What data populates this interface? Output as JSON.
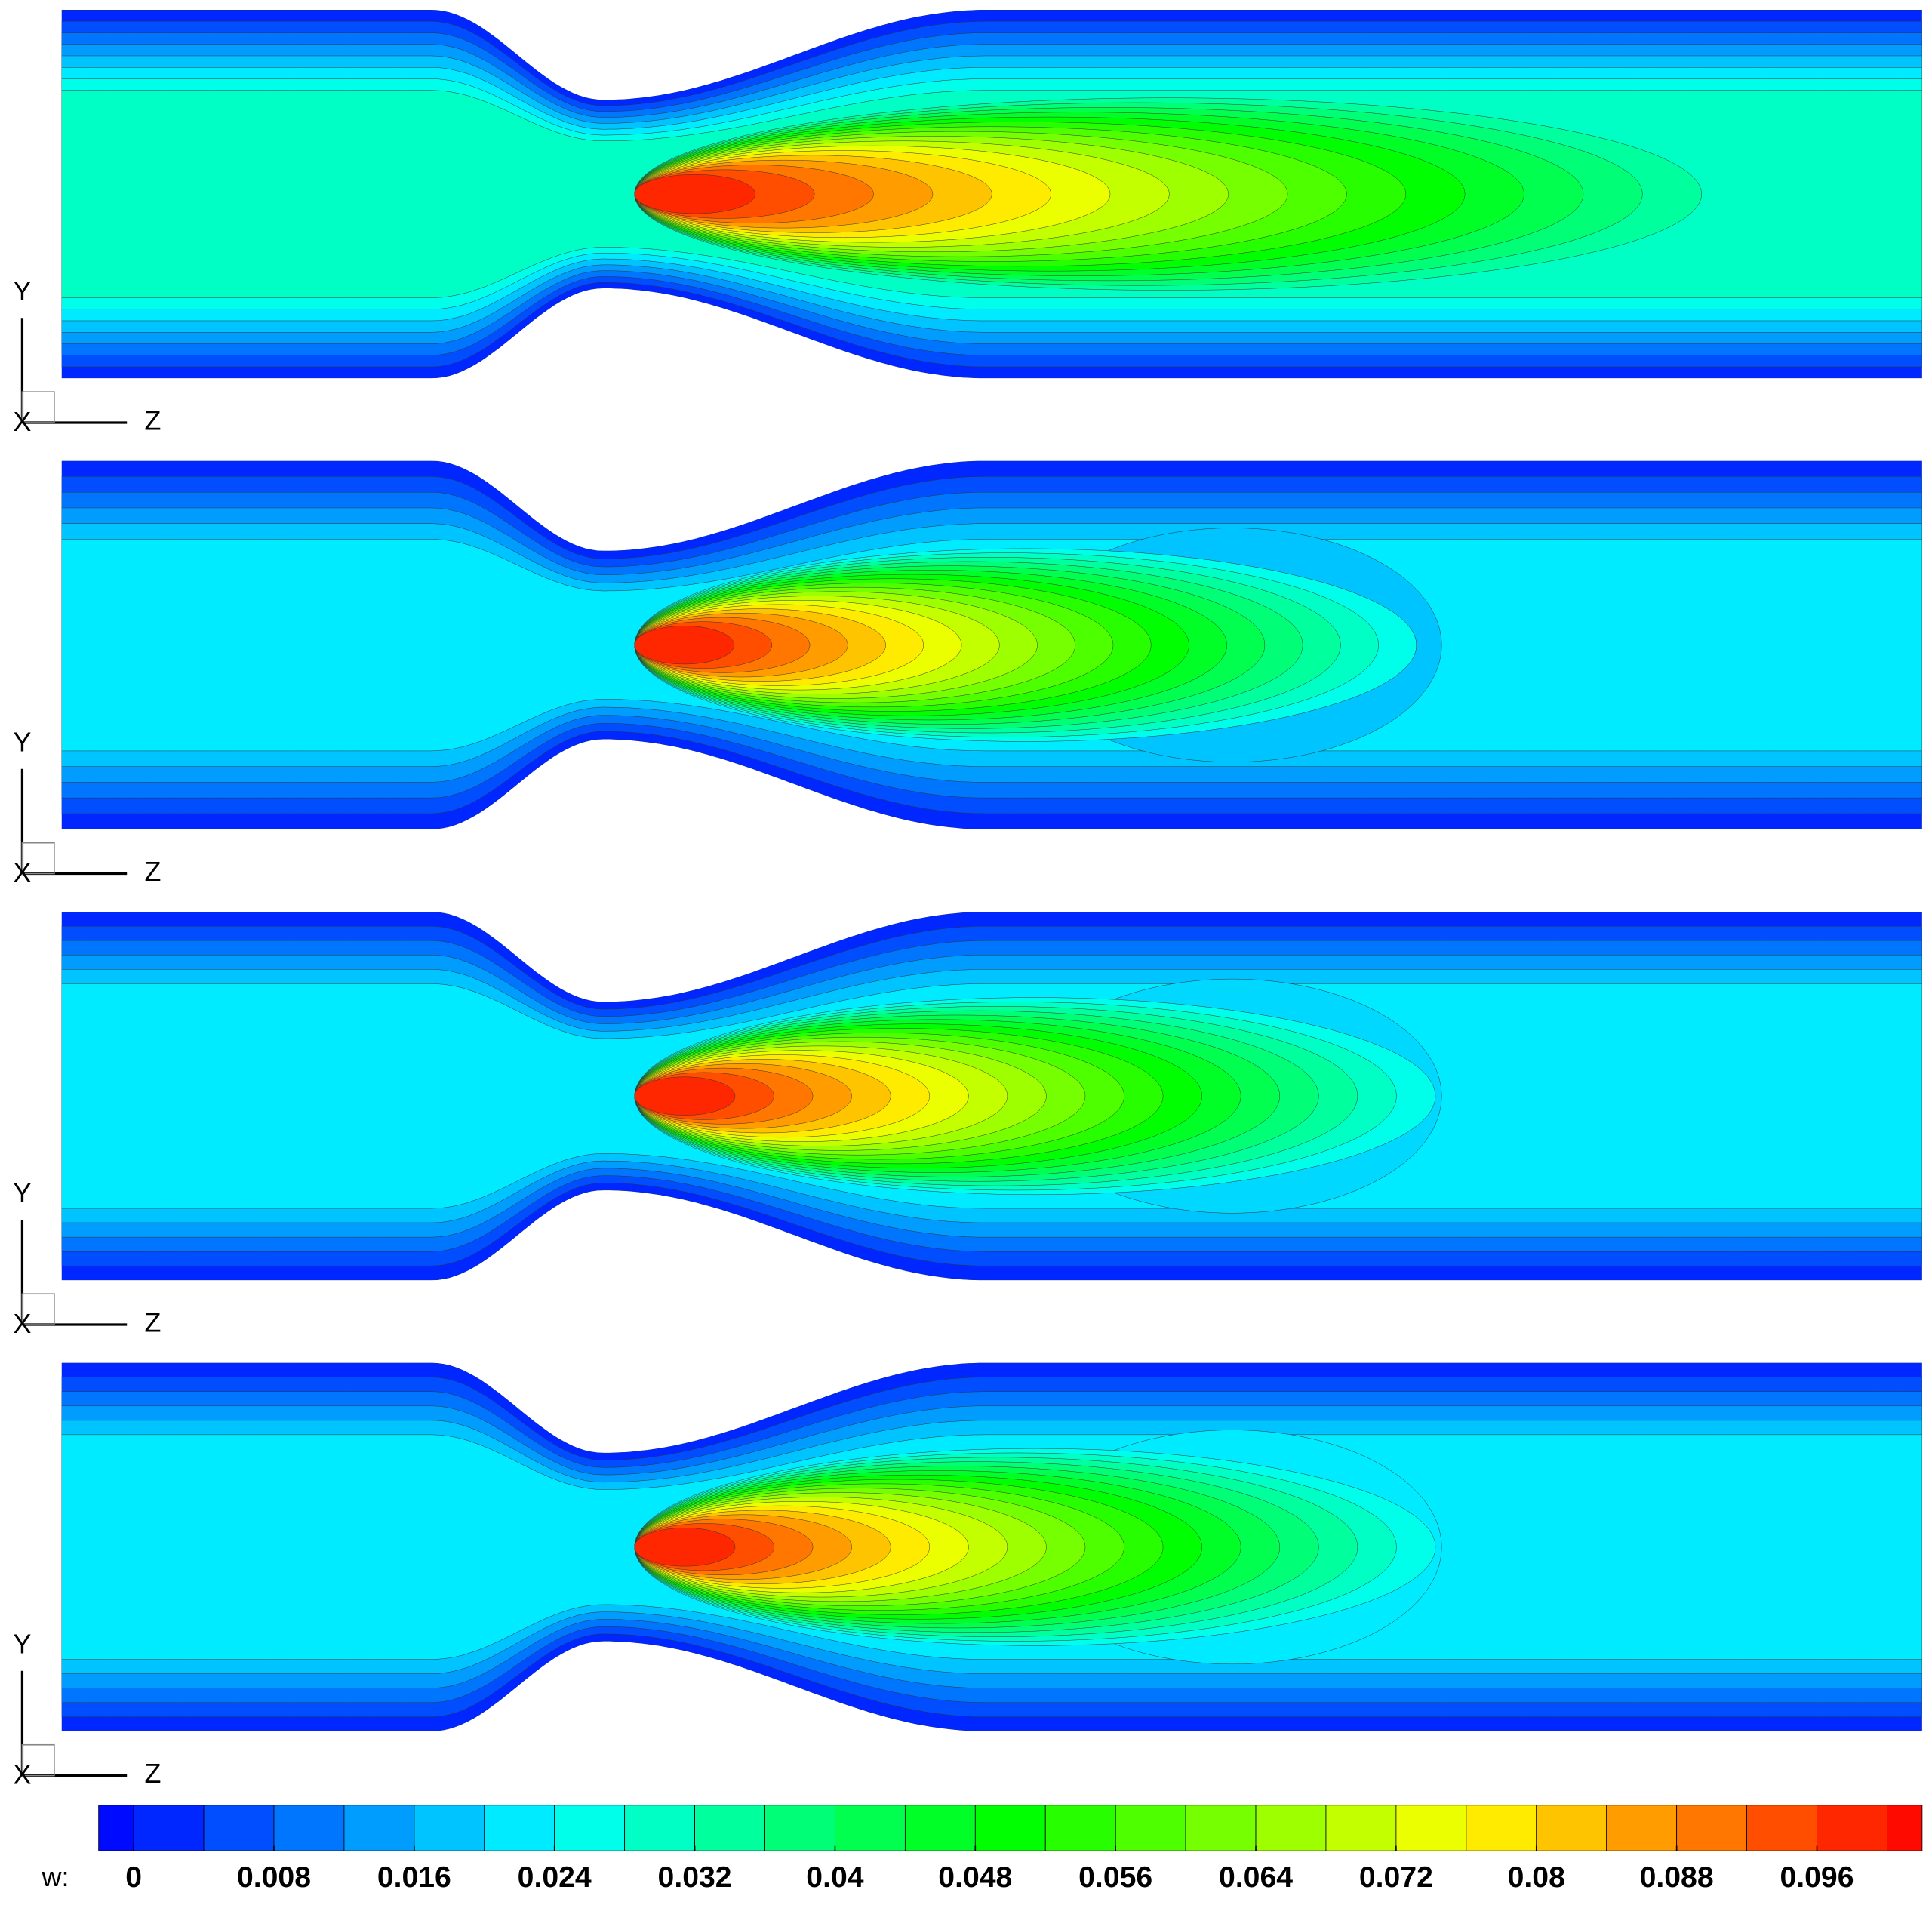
{
  "chart_data": {
    "type": "contour",
    "axis_labels": {
      "y": "Y",
      "z": "Z",
      "x": "X"
    },
    "panels": [
      {
        "core_w": 0.03,
        "peak_w": 0.1
      },
      {
        "core_w": 0.022,
        "peak_w": 0.1,
        "wake_w": 0.016
      },
      {
        "core_w": 0.024,
        "peak_w": 0.1,
        "wake_w": 0.018
      },
      {
        "core_w": 0.024,
        "peak_w": 0.1,
        "wake_w": 0.02
      }
    ],
    "colorbar": {
      "label": "w:",
      "lim": [
        -0.002,
        0.102
      ],
      "ticks": [
        0,
        0.008,
        0.016,
        0.024,
        0.032,
        0.04,
        0.048,
        0.056,
        0.064,
        0.072,
        0.08,
        0.088,
        0.096
      ],
      "levels": [
        0,
        0.004,
        0.008,
        0.012,
        0.016,
        0.02,
        0.024,
        0.028,
        0.032,
        0.036,
        0.04,
        0.044,
        0.048,
        0.052,
        0.056,
        0.06,
        0.064,
        0.068,
        0.072,
        0.076,
        0.08,
        0.084,
        0.088,
        0.092,
        0.096,
        0.1
      ],
      "colormap": [
        "#0000ff",
        "#00ffff",
        "#00ff00",
        "#ffff00",
        "#ff0000"
      ]
    }
  }
}
